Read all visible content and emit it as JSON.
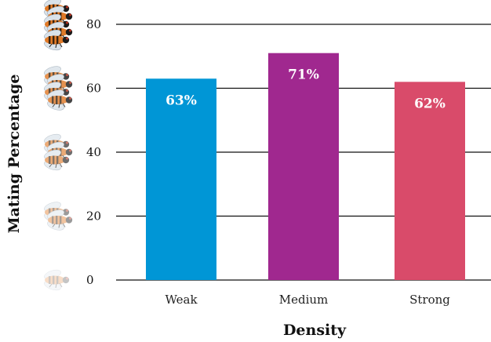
{
  "chart_data": {
    "type": "bar",
    "categories": [
      "Weak",
      "Medium",
      "Strong"
    ],
    "values": [
      63,
      71,
      62
    ],
    "value_labels": [
      "63%",
      "71%",
      "62%"
    ],
    "colors": [
      "#0096d6",
      "#a0288f",
      "#d94b6a"
    ],
    "title": "",
    "xlabel": "Density",
    "ylabel": "Mating Percentage",
    "ylim": [
      0,
      80
    ],
    "yticks": [
      0,
      20,
      40,
      60,
      80
    ],
    "ytick_labels": [
      "0",
      "20",
      "40",
      "60",
      "80"
    ],
    "grid": true,
    "icon": "fly-icon",
    "icon_counts": [
      1,
      2,
      3,
      4,
      5
    ]
  }
}
